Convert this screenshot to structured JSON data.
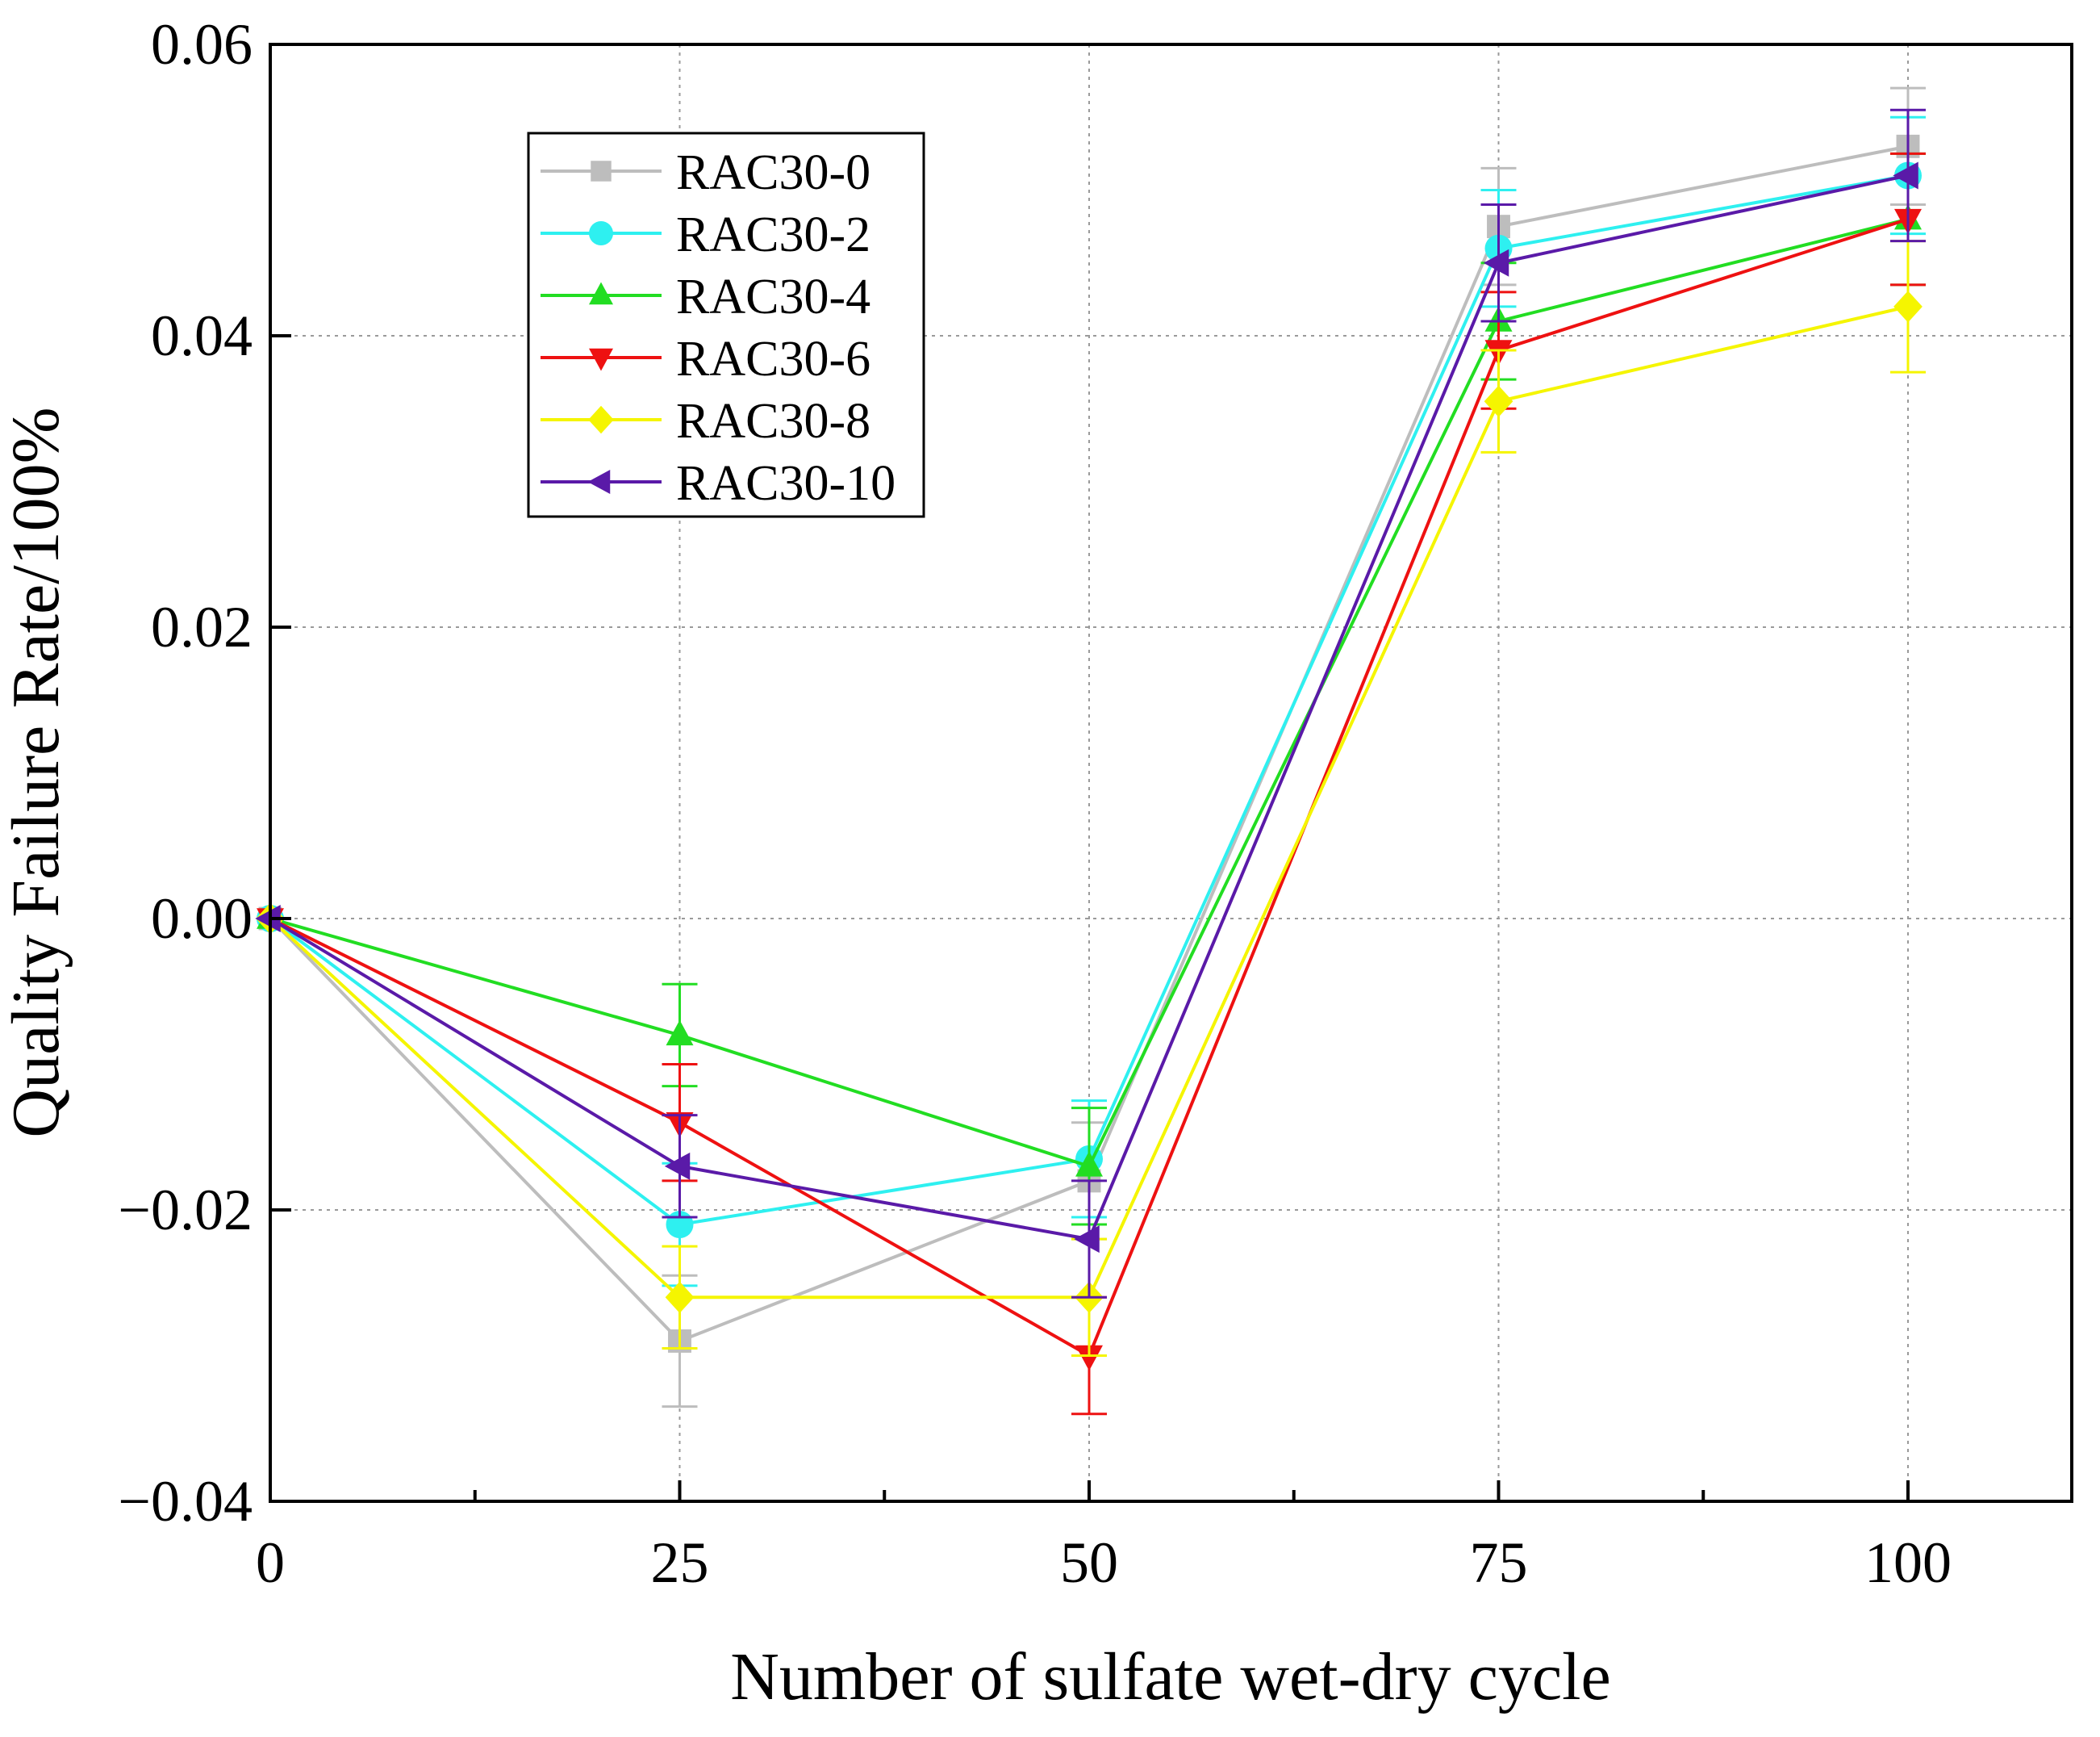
{
  "chart_data": {
    "type": "line",
    "xlabel": "Number of sulfate wet-dry cycle",
    "ylabel": "Quality Failure Rate/100%",
    "xlim": [
      0,
      110
    ],
    "ylim": [
      -0.04,
      0.06
    ],
    "x_ticks": [
      0,
      25,
      50,
      75,
      100
    ],
    "x_tick_labels": [
      "0",
      "25",
      "50",
      "75",
      "100"
    ],
    "x_minor_ticks": [
      12.5,
      37.5,
      62.5,
      87.5
    ],
    "y_ticks": [
      -0.04,
      -0.02,
      0.0,
      0.02,
      0.04,
      0.06
    ],
    "y_tick_labels": [
      "−0.04",
      "−0.02",
      "0.00",
      "0.02",
      "0.04",
      "0.06"
    ],
    "grid": true,
    "legend_position": "top-left",
    "x": [
      0,
      25,
      50,
      75,
      100
    ],
    "series": [
      {
        "name": "RAC30-0",
        "color": "#bdbdbd",
        "marker": "square",
        "values": [
          0,
          -0.029,
          -0.018,
          0.0475,
          0.053
        ],
        "errors": [
          0,
          0.0045,
          0.004,
          0.004,
          0.004
        ]
      },
      {
        "name": "RAC30-2",
        "color": "#2ef0f0",
        "marker": "circle",
        "values": [
          0,
          -0.021,
          -0.0165,
          0.046,
          0.051
        ],
        "errors": [
          0,
          0.0042,
          0.004,
          0.004,
          0.004
        ]
      },
      {
        "name": "RAC30-4",
        "color": "#22dd22",
        "marker": "triangle-up",
        "values": [
          0,
          -0.008,
          -0.017,
          0.041,
          0.048
        ],
        "errors": [
          0,
          0.0035,
          0.004,
          0.004,
          0.0045
        ]
      },
      {
        "name": "RAC30-6",
        "color": "#ee1111",
        "marker": "triangle-down",
        "values": [
          0,
          -0.014,
          -0.03,
          0.039,
          0.048
        ],
        "errors": [
          0,
          0.004,
          0.004,
          0.004,
          0.0045
        ]
      },
      {
        "name": "RAC30-8",
        "color": "#f5f500",
        "marker": "diamond",
        "values": [
          0,
          -0.026,
          -0.026,
          0.0355,
          0.042
        ],
        "errors": [
          0,
          0.0035,
          0.004,
          0.0035,
          0.0045
        ]
      },
      {
        "name": "RAC30-10",
        "color": "#5a1aa8",
        "marker": "triangle-left",
        "values": [
          0,
          -0.017,
          -0.022,
          0.045,
          0.051
        ],
        "errors": [
          0,
          0.0035,
          0.004,
          0.004,
          0.0045
        ]
      }
    ]
  }
}
